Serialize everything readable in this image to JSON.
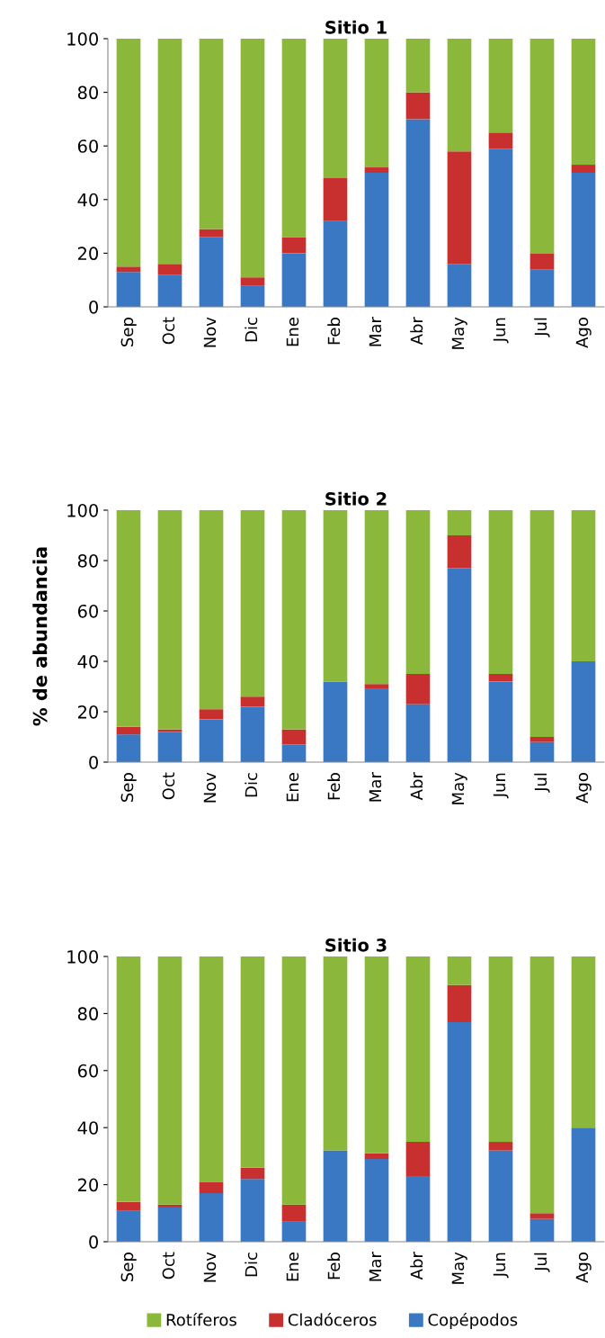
{
  "chart_data": [
    {
      "type": "bar",
      "title": "Sitio 1",
      "stacked": true,
      "categories": [
        "Sep",
        "Oct",
        "Nov",
        "Dic",
        "Ene",
        "Feb",
        "Mar",
        "Abr",
        "May",
        "Jun",
        "Jul",
        "Ago"
      ],
      "ylim": [
        0,
        100
      ],
      "yticks": [
        0,
        20,
        40,
        60,
        80,
        100
      ],
      "grid": false,
      "legend": false,
      "series": [
        {
          "color": "#3a78c3",
          "values": [
            13,
            12,
            26,
            8,
            20,
            32,
            50,
            70,
            16,
            59,
            14,
            50
          ]
        },
        {
          "color": "#c8302f",
          "values": [
            2,
            4,
            3,
            3,
            6,
            16,
            2,
            10,
            42,
            6,
            6,
            3
          ]
        },
        {
          "color": "#8bb83a",
          "values": [
            85,
            84,
            71,
            89,
            74,
            52,
            48,
            20,
            42,
            35,
            80,
            47
          ]
        }
      ]
    },
    {
      "type": "bar",
      "title": "Sitio 2",
      "ylabel": "% de abundancia",
      "stacked": true,
      "categories": [
        "Sep",
        "Oct",
        "Nov",
        "Dic",
        "Ene",
        "Feb",
        "Mar",
        "Abr",
        "May",
        "Jun",
        "Jul",
        "Ago"
      ],
      "ylim": [
        0,
        100
      ],
      "yticks": [
        0,
        20,
        40,
        60,
        80,
        100
      ],
      "grid": false,
      "legend": false,
      "series": [
        {
          "color": "#3a78c3",
          "values": [
            11,
            12,
            17,
            22,
            7,
            32,
            29,
            23,
            77,
            32,
            8,
            40
          ]
        },
        {
          "color": "#c8302f",
          "values": [
            3,
            1,
            4,
            4,
            6,
            0,
            2,
            12,
            13,
            3,
            2,
            0
          ]
        },
        {
          "color": "#8bb83a",
          "values": [
            86,
            87,
            79,
            74,
            87,
            68,
            69,
            65,
            10,
            65,
            90,
            60
          ]
        }
      ]
    },
    {
      "type": "bar",
      "title": "Sitio 3",
      "stacked": true,
      "categories": [
        "Sep",
        "Oct",
        "Nov",
        "Dic",
        "Ene",
        "Feb",
        "Mar",
        "Abr",
        "May",
        "Jun",
        "Jul",
        "Ago"
      ],
      "ylim": [
        0,
        100
      ],
      "yticks": [
        0,
        20,
        40,
        60,
        80,
        100
      ],
      "grid": false,
      "legend": "bottom",
      "series": [
        {
          "name": "Copépodos",
          "color": "#3a78c3",
          "values": [
            11,
            12,
            17,
            22,
            7,
            32,
            29,
            23,
            77,
            32,
            8,
            40
          ]
        },
        {
          "name": "Cladóceros",
          "color": "#c8302f",
          "values": [
            3,
            1,
            4,
            4,
            6,
            0,
            2,
            12,
            13,
            3,
            2,
            0
          ]
        },
        {
          "name": "Rotíferos",
          "color": "#8bb83a",
          "values": [
            86,
            87,
            79,
            74,
            87,
            68,
            69,
            65,
            10,
            65,
            90,
            60
          ]
        }
      ]
    }
  ]
}
